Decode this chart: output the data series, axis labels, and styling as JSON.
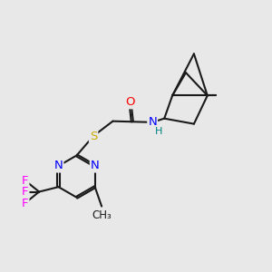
{
  "bg_color": "#e8e8e8",
  "bond_color": "#1a1a1a",
  "line_width": 1.5,
  "atom_colors": {
    "O": "#ff0000",
    "N": "#0000ff",
    "S": "#ccaa00",
    "F": "#ff00ff",
    "H": "#008080",
    "C": "#1a1a1a"
  },
  "font_size": 9.5
}
